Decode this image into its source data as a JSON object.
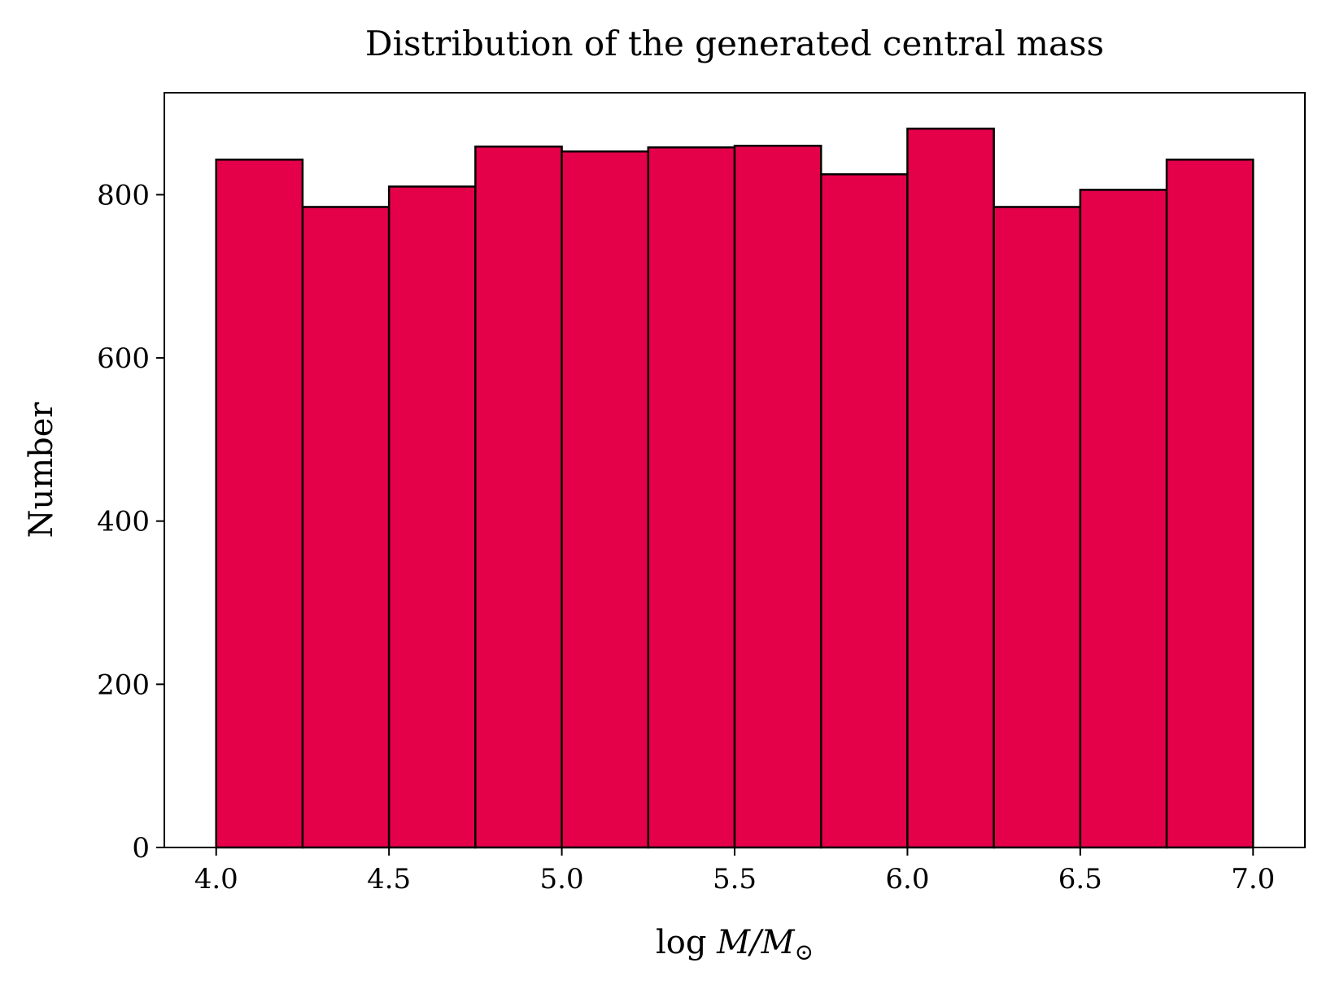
{
  "chart_data": {
    "type": "bar",
    "title": "Distribution of the generated central mass",
    "xlabel": {
      "prefix": "log ",
      "var1": "M",
      "slash": "/",
      "var2": "M",
      "subscript": "⊙"
    },
    "ylabel": "Number",
    "bin_edges": [
      4.0,
      4.25,
      4.5,
      4.75,
      5.0,
      5.25,
      5.5,
      5.75,
      6.0,
      6.25,
      6.5,
      6.75,
      7.0
    ],
    "values": [
      843,
      785,
      810,
      859,
      853,
      858,
      860,
      825,
      881,
      785,
      806,
      843
    ],
    "xlim": [
      3.85,
      7.15
    ],
    "ylim": [
      0,
      925
    ],
    "xticks": [
      4.0,
      4.5,
      5.0,
      5.5,
      6.0,
      6.5,
      7.0
    ],
    "xtick_labels": [
      "4.0",
      "4.5",
      "5.0",
      "5.5",
      "6.0",
      "6.5",
      "7.0"
    ],
    "yticks": [
      0,
      200,
      400,
      600,
      800
    ],
    "ytick_labels": [
      "0",
      "200",
      "400",
      "600",
      "800"
    ],
    "bar_color": "#E5004A",
    "edge_color": "#000000",
    "grid": false,
    "legend": "none"
  }
}
